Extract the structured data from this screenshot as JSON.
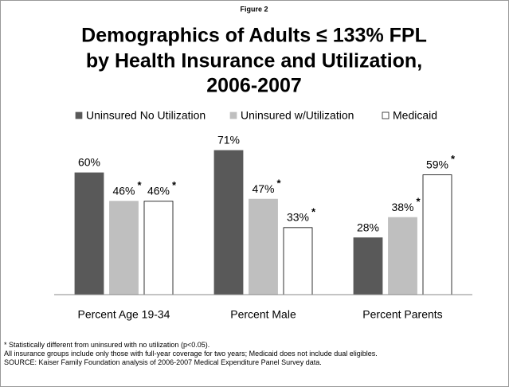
{
  "chart_data": {
    "type": "bar",
    "figure_label": "Figure 2",
    "title_lines": [
      "Demographics of Adults ≤ 133% FPL",
      "by Health Insurance and Utilization,",
      "2006-2007"
    ],
    "categories": [
      "Percent Age 19-34",
      "Percent Male",
      "Percent Parents"
    ],
    "series": [
      {
        "name": "Uninsured No Utilization",
        "color": "#595959",
        "values": [
          60,
          71,
          28
        ],
        "value_labels": [
          "60%",
          "71%",
          "28%"
        ],
        "significant": [
          false,
          false,
          false
        ]
      },
      {
        "name": "Uninsured w/Utilization",
        "color": "#bfbfbf",
        "values": [
          46,
          47,
          38
        ],
        "value_labels": [
          "46%",
          "47%",
          "38%"
        ],
        "significant": [
          true,
          true,
          true
        ]
      },
      {
        "name": "Medicaid",
        "color": "#ffffff",
        "values": [
          46,
          33,
          59
        ],
        "value_labels": [
          "46%",
          "33%",
          "59%"
        ],
        "significant": [
          true,
          true,
          true
        ]
      }
    ],
    "significance_marker": "*",
    "ylim": [
      0,
      100
    ],
    "legend": "top",
    "footnotes": [
      "* Statistically different from uninsured with no utilization (p<0.05).",
      "All insurance groups include only those with full-year coverage for two years; Medicaid does not include dual eligibles.",
      "SOURCE: Kaiser Family Foundation analysis of 2006-2007 Medical Expenditure Panel Survey data."
    ]
  }
}
